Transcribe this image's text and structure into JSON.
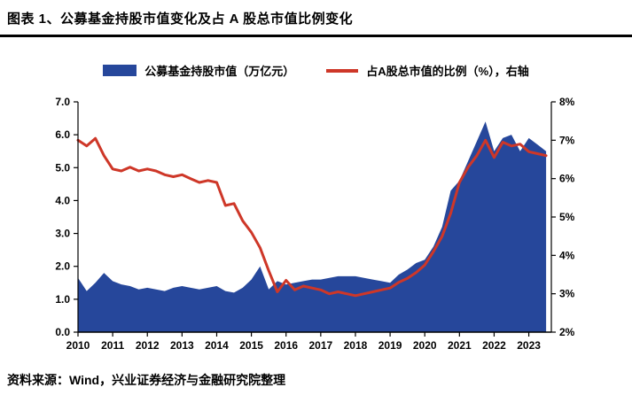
{
  "header": {
    "title": "图表 1、公募基金持股市值变化及占 A 股总市值比例变化"
  },
  "legend": {
    "area_label": "公募基金持股市值（万亿元）",
    "line_label": "占A股总市值的比例（%），右轴"
  },
  "footer": {
    "source": "资料来源：Wind，兴业证券经济与金融研究院整理"
  },
  "colors": {
    "area": "#26479B",
    "line": "#CE3728",
    "axis": "#000000"
  },
  "chart_data": {
    "type": "area+line",
    "title": "公募基金持股市值变化及占 A 股总市值比例变化",
    "x_range": [
      2010,
      2023.65
    ],
    "x_ticks": [
      2010,
      2011,
      2012,
      2013,
      2014,
      2015,
      2016,
      2017,
      2018,
      2019,
      2020,
      2021,
      2022,
      2023
    ],
    "left_axis": {
      "min": 0,
      "max": 7,
      "ticks": [
        "0.0",
        "1.0",
        "2.0",
        "3.0",
        "4.0",
        "5.0",
        "6.0",
        "7.0"
      ],
      "unit": "万亿元"
    },
    "right_axis": {
      "min": 2,
      "max": 8,
      "ticks": [
        "2%",
        "3%",
        "4%",
        "5%",
        "6%",
        "7%",
        "8%"
      ],
      "unit": "%"
    },
    "grid": false,
    "legend_position": "top-center",
    "x": [
      2010,
      2010.25,
      2010.5,
      2010.75,
      2011,
      2011.25,
      2011.5,
      2011.75,
      2012,
      2012.25,
      2012.5,
      2012.75,
      2013,
      2013.25,
      2013.5,
      2013.75,
      2014,
      2014.25,
      2014.5,
      2014.75,
      2015,
      2015.25,
      2015.5,
      2015.75,
      2016,
      2016.25,
      2016.5,
      2016.75,
      2017,
      2017.25,
      2017.5,
      2017.75,
      2018,
      2018.25,
      2018.5,
      2018.75,
      2019,
      2019.25,
      2019.5,
      2019.75,
      2020,
      2020.25,
      2020.5,
      2020.75,
      2021,
      2021.25,
      2021.5,
      2021.75,
      2022,
      2022.25,
      2022.5,
      2022.75,
      2023,
      2023.25,
      2023.5
    ],
    "series": [
      {
        "name": "公募基金持股市值（万亿元）",
        "type": "area",
        "axis": "left",
        "values": [
          1.65,
          1.25,
          1.5,
          1.8,
          1.55,
          1.45,
          1.4,
          1.3,
          1.35,
          1.3,
          1.25,
          1.35,
          1.4,
          1.35,
          1.3,
          1.35,
          1.4,
          1.25,
          1.2,
          1.35,
          1.6,
          2.0,
          1.3,
          1.55,
          1.45,
          1.5,
          1.55,
          1.6,
          1.6,
          1.65,
          1.7,
          1.7,
          1.7,
          1.65,
          1.6,
          1.55,
          1.5,
          1.75,
          1.9,
          2.1,
          2.2,
          2.6,
          3.2,
          4.3,
          4.6,
          5.2,
          5.8,
          6.4,
          5.5,
          5.9,
          6.0,
          5.5,
          5.9,
          5.7,
          5.5
        ]
      },
      {
        "name": "占A股总市值的比例（%），右轴",
        "type": "line",
        "axis": "right",
        "values": [
          7.0,
          6.85,
          7.05,
          6.6,
          6.25,
          6.2,
          6.3,
          6.2,
          6.25,
          6.2,
          6.1,
          6.05,
          6.1,
          6.0,
          5.9,
          5.95,
          5.9,
          5.3,
          5.35,
          4.9,
          4.6,
          4.2,
          3.6,
          3.05,
          3.35,
          3.1,
          3.2,
          3.15,
          3.1,
          3.0,
          3.05,
          3.0,
          2.95,
          3.0,
          3.05,
          3.1,
          3.15,
          3.3,
          3.4,
          3.55,
          3.75,
          4.1,
          4.5,
          5.1,
          5.9,
          6.3,
          6.6,
          7.0,
          6.55,
          6.95,
          6.85,
          6.9,
          6.7,
          6.65,
          6.6
        ]
      }
    ]
  }
}
